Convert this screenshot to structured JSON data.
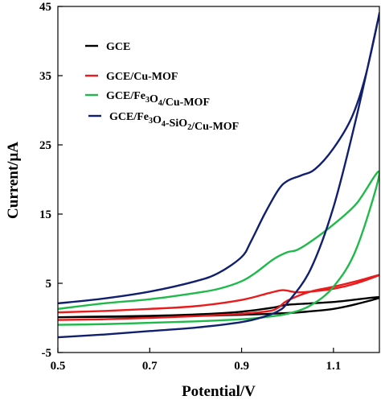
{
  "chart_data": {
    "type": "line",
    "title": "",
    "xlabel": "Potential/V",
    "ylabel": "Current/μA",
    "xlim": [
      0.5,
      1.2
    ],
    "ylim": [
      -5,
      45
    ],
    "x_ticks": [
      0.5,
      0.7,
      0.9,
      1.1
    ],
    "x_tick_labels": [
      "0.5",
      "0.7",
      "0.9",
      "1.1"
    ],
    "y_ticks": [
      -5,
      5,
      15,
      25,
      35,
      45
    ],
    "y_tick_labels": [
      "-5",
      "5",
      "15",
      "25",
      "35",
      "45"
    ],
    "grid": false,
    "legend_position": "top-left",
    "series": [
      {
        "name": "GCE",
        "color": "#000000",
        "forward": {
          "x": [
            0.5,
            0.6,
            0.7,
            0.8,
            0.9,
            1.0,
            1.05,
            1.1,
            1.15,
            1.2
          ],
          "y": [
            0.1,
            0.15,
            0.2,
            0.3,
            0.45,
            0.7,
            0.95,
            1.3,
            2.0,
            3.0
          ]
        },
        "reverse": {
          "x": [
            1.2,
            1.1,
            1.0,
            0.97,
            0.9,
            0.8,
            0.7,
            0.6,
            0.5
          ],
          "y": [
            3.0,
            2.3,
            1.9,
            1.5,
            0.9,
            0.5,
            0.3,
            0.2,
            0.1
          ]
        }
      },
      {
        "name": "GCE/Cu-MOF",
        "color": "#e81c1c",
        "forward": {
          "x": [
            0.5,
            0.6,
            0.7,
            0.8,
            0.9,
            0.96,
            0.98,
            1.0,
            1.05,
            1.1,
            1.15,
            1.2
          ],
          "y": [
            -0.3,
            -0.2,
            0.0,
            0.25,
            0.6,
            1.0,
            1.5,
            2.5,
            3.8,
            4.5,
            5.3,
            6.2
          ]
        },
        "reverse": {
          "x": [
            1.2,
            1.15,
            1.1,
            1.05,
            1.02,
            0.99,
            0.96,
            0.9,
            0.8,
            0.7,
            0.6,
            0.5
          ],
          "y": [
            6.2,
            5.0,
            4.2,
            3.8,
            3.7,
            4.0,
            3.6,
            2.6,
            1.7,
            1.3,
            1.0,
            0.8
          ]
        }
      },
      {
        "name": "GCE/Fe3O4/Cu-MOF",
        "color": "#1fba4a",
        "forward": {
          "x": [
            0.5,
            0.6,
            0.7,
            0.8,
            0.9,
            0.95,
            1.0,
            1.05,
            1.1,
            1.15,
            1.2
          ],
          "y": [
            -1.0,
            -0.9,
            -0.7,
            -0.5,
            -0.2,
            0.1,
            0.6,
            1.8,
            4.5,
            10.0,
            21.0
          ]
        },
        "reverse": {
          "x": [
            1.2,
            1.15,
            1.1,
            1.05,
            1.02,
            1.0,
            0.97,
            0.93,
            0.9,
            0.85,
            0.8,
            0.7,
            0.6,
            0.5
          ],
          "y": [
            21.0,
            16.5,
            13.5,
            11.0,
            9.8,
            9.5,
            8.5,
            6.5,
            5.3,
            4.2,
            3.6,
            2.7,
            2.1,
            1.3
          ]
        }
      },
      {
        "name": "GCE/Fe3O4-SiO2/Cu-MOF",
        "color": "#10206e",
        "forward": {
          "x": [
            0.5,
            0.6,
            0.7,
            0.8,
            0.9,
            0.95,
            0.98,
            1.0,
            1.05,
            1.1,
            1.15,
            1.2
          ],
          "y": [
            -2.8,
            -2.4,
            -1.9,
            -1.4,
            -0.6,
            0.2,
            1.0,
            2.2,
            7.0,
            16.0,
            29.0,
            44.0
          ]
        },
        "reverse": {
          "x": [
            1.2,
            1.17,
            1.14,
            1.1,
            1.06,
            1.03,
            1.0,
            0.98,
            0.95,
            0.92,
            0.9,
            0.85,
            0.8,
            0.7,
            0.6,
            0.5
          ],
          "y": [
            44.0,
            35.0,
            29.0,
            24.5,
            21.5,
            20.6,
            19.8,
            18.5,
            15.0,
            11.0,
            8.8,
            6.5,
            5.3,
            3.8,
            2.8,
            2.1
          ]
        }
      }
    ]
  },
  "legend": {
    "entries": [
      {
        "label": "GCE",
        "color": "#000000",
        "subs": []
      },
      {
        "label": "GCE/Cu-MOF",
        "color": "#e81c1c",
        "subs": []
      },
      {
        "label": "GCE/Fe3O4/Cu-MOF",
        "color": "#1fba4a",
        "subs": [
          "3",
          "4"
        ]
      },
      {
        "label": "GCE/Fe3O4-SiO2/Cu-MOF",
        "color": "#10206e",
        "subs": [
          "3",
          "4",
          "2"
        ]
      }
    ]
  }
}
